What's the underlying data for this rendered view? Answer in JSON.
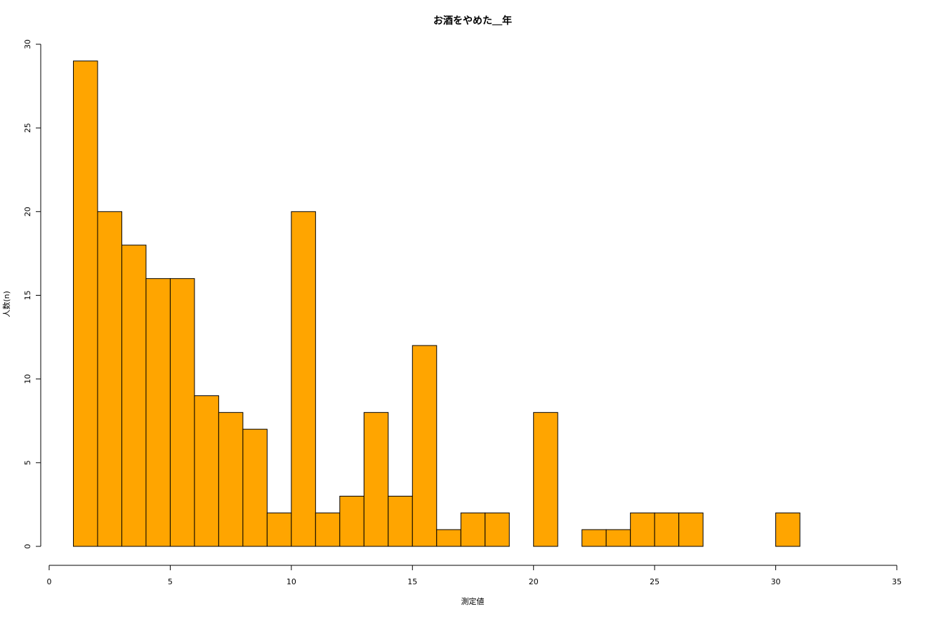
{
  "chart_data": {
    "type": "histogram",
    "title": "お酒をやめた＿年",
    "x_label": "測定値",
    "y_label": "人数(n)",
    "bins": [
      1,
      2,
      3,
      4,
      5,
      6,
      7,
      8,
      9,
      10,
      11,
      12,
      13,
      14,
      15,
      16,
      17,
      18,
      19,
      20,
      21,
      22,
      23,
      24,
      25,
      26,
      27,
      28,
      29,
      30,
      31
    ],
    "values": [
      29,
      20,
      18,
      16,
      16,
      9,
      8,
      7,
      2,
      20,
      2,
      3,
      8,
      3,
      12,
      1,
      2,
      2,
      0,
      8,
      0,
      1,
      1,
      2,
      2,
      2,
      0,
      0,
      0,
      2
    ],
    "color": "#ffa500",
    "xlim": [
      0,
      35
    ],
    "xticks": [
      0,
      5,
      10,
      15,
      20,
      25,
      30,
      35
    ],
    "ylim": [
      0,
      30
    ],
    "yticks": [
      0,
      5,
      10,
      15,
      20,
      25,
      30
    ]
  }
}
